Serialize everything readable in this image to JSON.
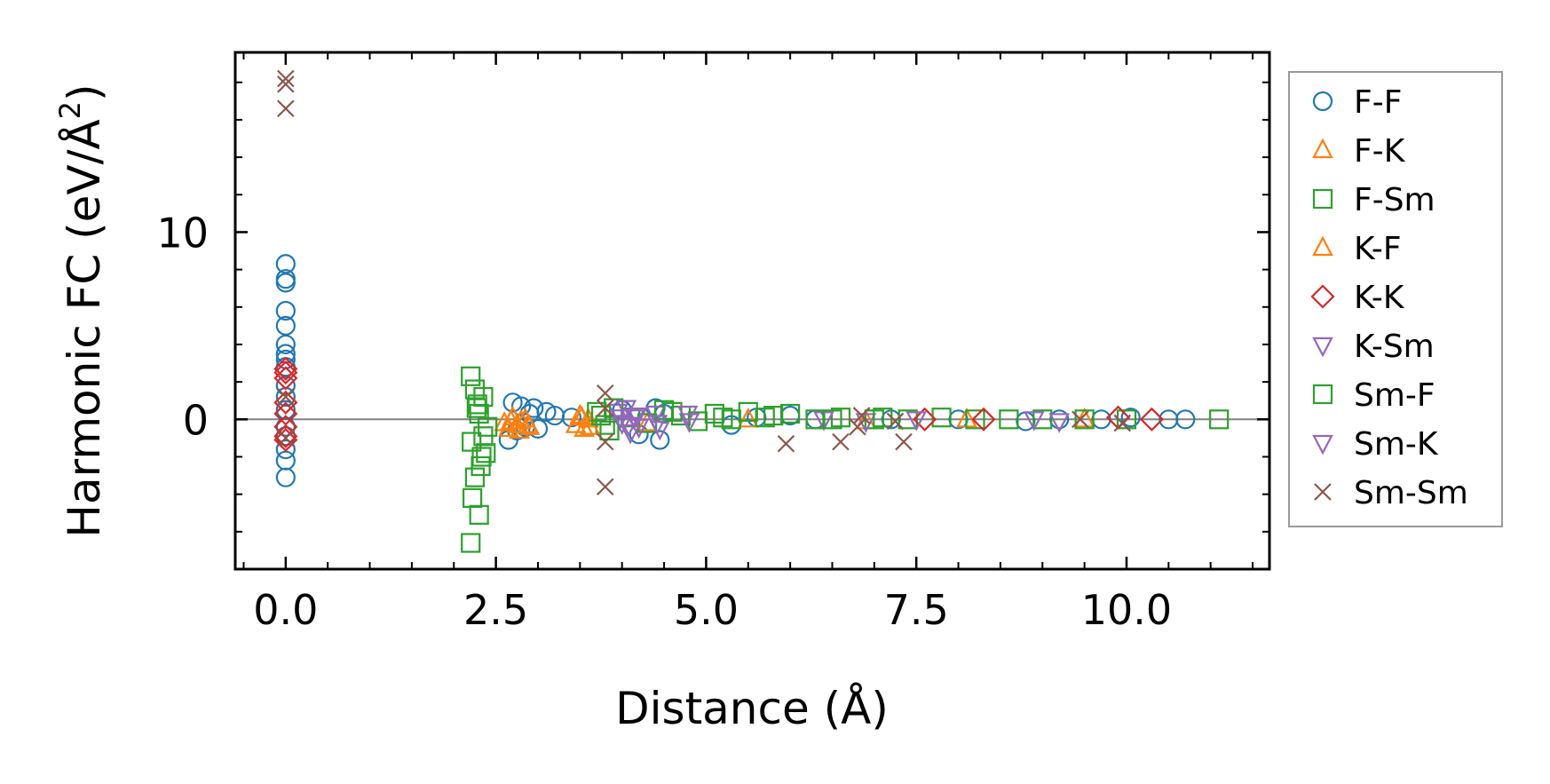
{
  "chart_data": {
    "type": "scatter",
    "title": "",
    "xlabel": "Distance (Å)",
    "ylabel_main": "Harmonic FC (eV/Å",
    "ylabel_sup": "2",
    "ylabel_end": ")",
    "xlim": [
      -0.6,
      11.7
    ],
    "ylim": [
      -8.0,
      19.6
    ],
    "xticks": [
      0.0,
      2.5,
      5.0,
      7.5,
      10.0
    ],
    "xtick_labels": [
      "0.0",
      "2.5",
      "5.0",
      "7.5",
      "10.0"
    ],
    "yticks": [
      0,
      10
    ],
    "ytick_labels": [
      "0",
      "10"
    ],
    "zero_line": true,
    "legend_position": "right-outside",
    "series": [
      {
        "name": "F-F",
        "marker": "circle",
        "color": "#1f77b4",
        "x": [
          0,
          0,
          0,
          0,
          0,
          0,
          0,
          0,
          0,
          0,
          0,
          0,
          0,
          0,
          0,
          0,
          0,
          2.65,
          2.7,
          2.75,
          2.8,
          2.85,
          2.9,
          2.95,
          3.0,
          3.1,
          3.2,
          3.4,
          4.0,
          4.2,
          4.4,
          4.45,
          4.5,
          5.3,
          5.6,
          6.0,
          6.3,
          7.2,
          8.0,
          8.8,
          9.2,
          9.7,
          10.05,
          10.5,
          10.7
        ],
        "y": [
          8.3,
          7.5,
          7.3,
          5.8,
          5.0,
          4.0,
          3.5,
          3.2,
          2.8,
          1.8,
          1.2,
          0.5,
          -0.4,
          -0.9,
          -1.6,
          -2.2,
          -3.1,
          -1.1,
          0.9,
          -0.6,
          0.7,
          -0.4,
          0.3,
          0.6,
          -0.5,
          0.4,
          0.2,
          0.1,
          0.5,
          -0.8,
          0.6,
          -1.1,
          0.3,
          -0.3,
          0.1,
          0.2,
          0.0,
          0.0,
          0.0,
          -0.1,
          0.0,
          0.0,
          0.1,
          0.0,
          0.0
        ]
      },
      {
        "name": "F-K",
        "marker": "triangle-up",
        "color": "#ff7f0e",
        "x": [
          2.6,
          2.65,
          2.7,
          2.75,
          2.8,
          2.85,
          2.9,
          3.45,
          3.5,
          3.55,
          3.6,
          4.3,
          5.5,
          6.9,
          8.1,
          9.5
        ],
        "y": [
          -0.2,
          -0.5,
          0.1,
          -0.3,
          -0.1,
          0.0,
          -0.4,
          -0.3,
          0.2,
          -0.5,
          0.0,
          -0.2,
          0.0,
          -0.1,
          0.0,
          0.0
        ]
      },
      {
        "name": "F-Sm",
        "marker": "square",
        "color": "#2ca02c",
        "x": [
          2.2,
          2.2,
          2.22,
          2.25,
          2.25,
          2.28,
          2.3,
          2.3,
          2.32,
          2.35,
          2.35,
          2.38,
          2.4,
          3.7,
          3.8,
          3.9,
          4.1,
          4.3,
          4.5,
          4.7,
          4.9,
          5.1,
          5.3,
          5.5,
          5.7,
          6.0,
          6.3,
          6.6,
          7.0,
          7.4,
          7.8,
          8.2,
          8.6,
          9.0,
          9.5,
          10.0,
          11.1
        ],
        "y": [
          -6.6,
          2.3,
          -4.2,
          1.6,
          -3.1,
          0.8,
          -5.1,
          0.3,
          -2.5,
          -0.9,
          1.2,
          -1.8,
          -0.4,
          0.4,
          -0.3,
          0.6,
          0.1,
          -0.2,
          0.5,
          0.2,
          -0.1,
          0.3,
          0.0,
          0.4,
          0.1,
          0.3,
          0.0,
          0.1,
          0.0,
          0.0,
          0.1,
          0.0,
          0.0,
          0.0,
          0.0,
          0.0,
          0.0
        ]
      },
      {
        "name": "K-F",
        "marker": "triangle-up",
        "color": "#ff7f0e",
        "x": [
          2.68,
          2.78,
          2.88,
          3.52,
          3.62
        ],
        "y": [
          -0.1,
          -0.6,
          -0.3,
          0.1,
          -0.4
        ]
      },
      {
        "name": "K-K",
        "marker": "diamond",
        "color": "#d62728",
        "x": [
          0,
          0,
          0,
          0,
          0,
          0,
          0,
          0,
          7.6,
          8.3,
          9.9,
          10.3
        ],
        "y": [
          2.7,
          2.5,
          2.2,
          0.9,
          0.3,
          -0.4,
          -0.9,
          -1.1,
          0.0,
          0.0,
          0.1,
          0.0
        ]
      },
      {
        "name": "K-Sm",
        "marker": "triangle-down",
        "color": "#9467bd",
        "x": [
          3.95,
          4.0,
          4.05,
          4.1,
          4.15,
          4.2,
          4.4,
          4.45,
          4.8,
          6.4,
          6.9,
          7.5,
          8.9,
          9.2
        ],
        "y": [
          0.4,
          -0.2,
          0.6,
          -0.7,
          0.1,
          -0.4,
          0.3,
          -0.5,
          -0.1,
          0.0,
          -0.1,
          0.0,
          0.0,
          -0.1
        ]
      },
      {
        "name": "Sm-F",
        "marker": "square",
        "color": "#2ca02c",
        "x": [
          2.21,
          2.27,
          2.33,
          3.75,
          3.85,
          4.6,
          5.2,
          5.8,
          6.5,
          7.1
        ],
        "y": [
          -1.2,
          0.6,
          -2.0,
          0.2,
          -0.6,
          0.4,
          0.1,
          0.2,
          0.0,
          0.1
        ]
      },
      {
        "name": "Sm-K",
        "marker": "triangle-down",
        "color": "#9467bd",
        "x": [
          3.98,
          4.08,
          4.18,
          4.42,
          4.78
        ],
        "y": [
          0.1,
          -0.3,
          0.2,
          -0.2,
          0.3
        ]
      },
      {
        "name": "Sm-Sm",
        "marker": "cross",
        "color": "#8c564b",
        "x": [
          0,
          0,
          0,
          0,
          0,
          3.8,
          3.8,
          3.8,
          3.8,
          5.95,
          6.6,
          6.8,
          6.85,
          7.25,
          7.35,
          9.45,
          9.95
        ],
        "y": [
          18.2,
          17.9,
          16.6,
          1.2,
          -1.0,
          1.4,
          0.6,
          -1.2,
          -3.6,
          -1.3,
          -1.2,
          -0.4,
          0.2,
          -0.1,
          -1.2,
          0.0,
          -0.2
        ]
      }
    ]
  }
}
